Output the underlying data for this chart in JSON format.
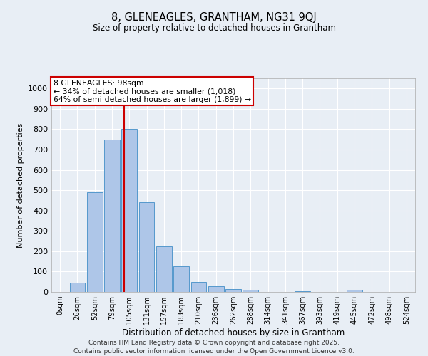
{
  "title1": "8, GLENEAGLES, GRANTHAM, NG31 9QJ",
  "title2": "Size of property relative to detached houses in Grantham",
  "xlabel": "Distribution of detached houses by size in Grantham",
  "ylabel": "Number of detached properties",
  "bin_labels": [
    "0sqm",
    "26sqm",
    "52sqm",
    "79sqm",
    "105sqm",
    "131sqm",
    "157sqm",
    "183sqm",
    "210sqm",
    "236sqm",
    "262sqm",
    "288sqm",
    "314sqm",
    "341sqm",
    "367sqm",
    "393sqm",
    "419sqm",
    "445sqm",
    "472sqm",
    "498sqm",
    "524sqm"
  ],
  "bar_values": [
    0,
    45,
    490,
    750,
    800,
    440,
    225,
    125,
    50,
    28,
    15,
    10,
    0,
    0,
    5,
    0,
    0,
    10,
    0,
    0,
    0
  ],
  "bar_color": "#aec6e8",
  "bar_edge_color": "#5599cc",
  "vline_x": 3.72,
  "vline_color": "#cc0000",
  "ylim": [
    0,
    1050
  ],
  "yticks": [
    0,
    100,
    200,
    300,
    400,
    500,
    600,
    700,
    800,
    900,
    1000
  ],
  "annotation_title": "8 GLENEAGLES: 98sqm",
  "annotation_line1": "← 34% of detached houses are smaller (1,018)",
  "annotation_line2": "64% of semi-detached houses are larger (1,899) →",
  "annotation_box_color": "#ffffff",
  "annotation_box_edge": "#cc0000",
  "bg_color": "#e8eef5",
  "grid_color": "#ffffff",
  "footer1": "Contains HM Land Registry data © Crown copyright and database right 2025.",
  "footer2": "Contains public sector information licensed under the Open Government Licence v3.0."
}
